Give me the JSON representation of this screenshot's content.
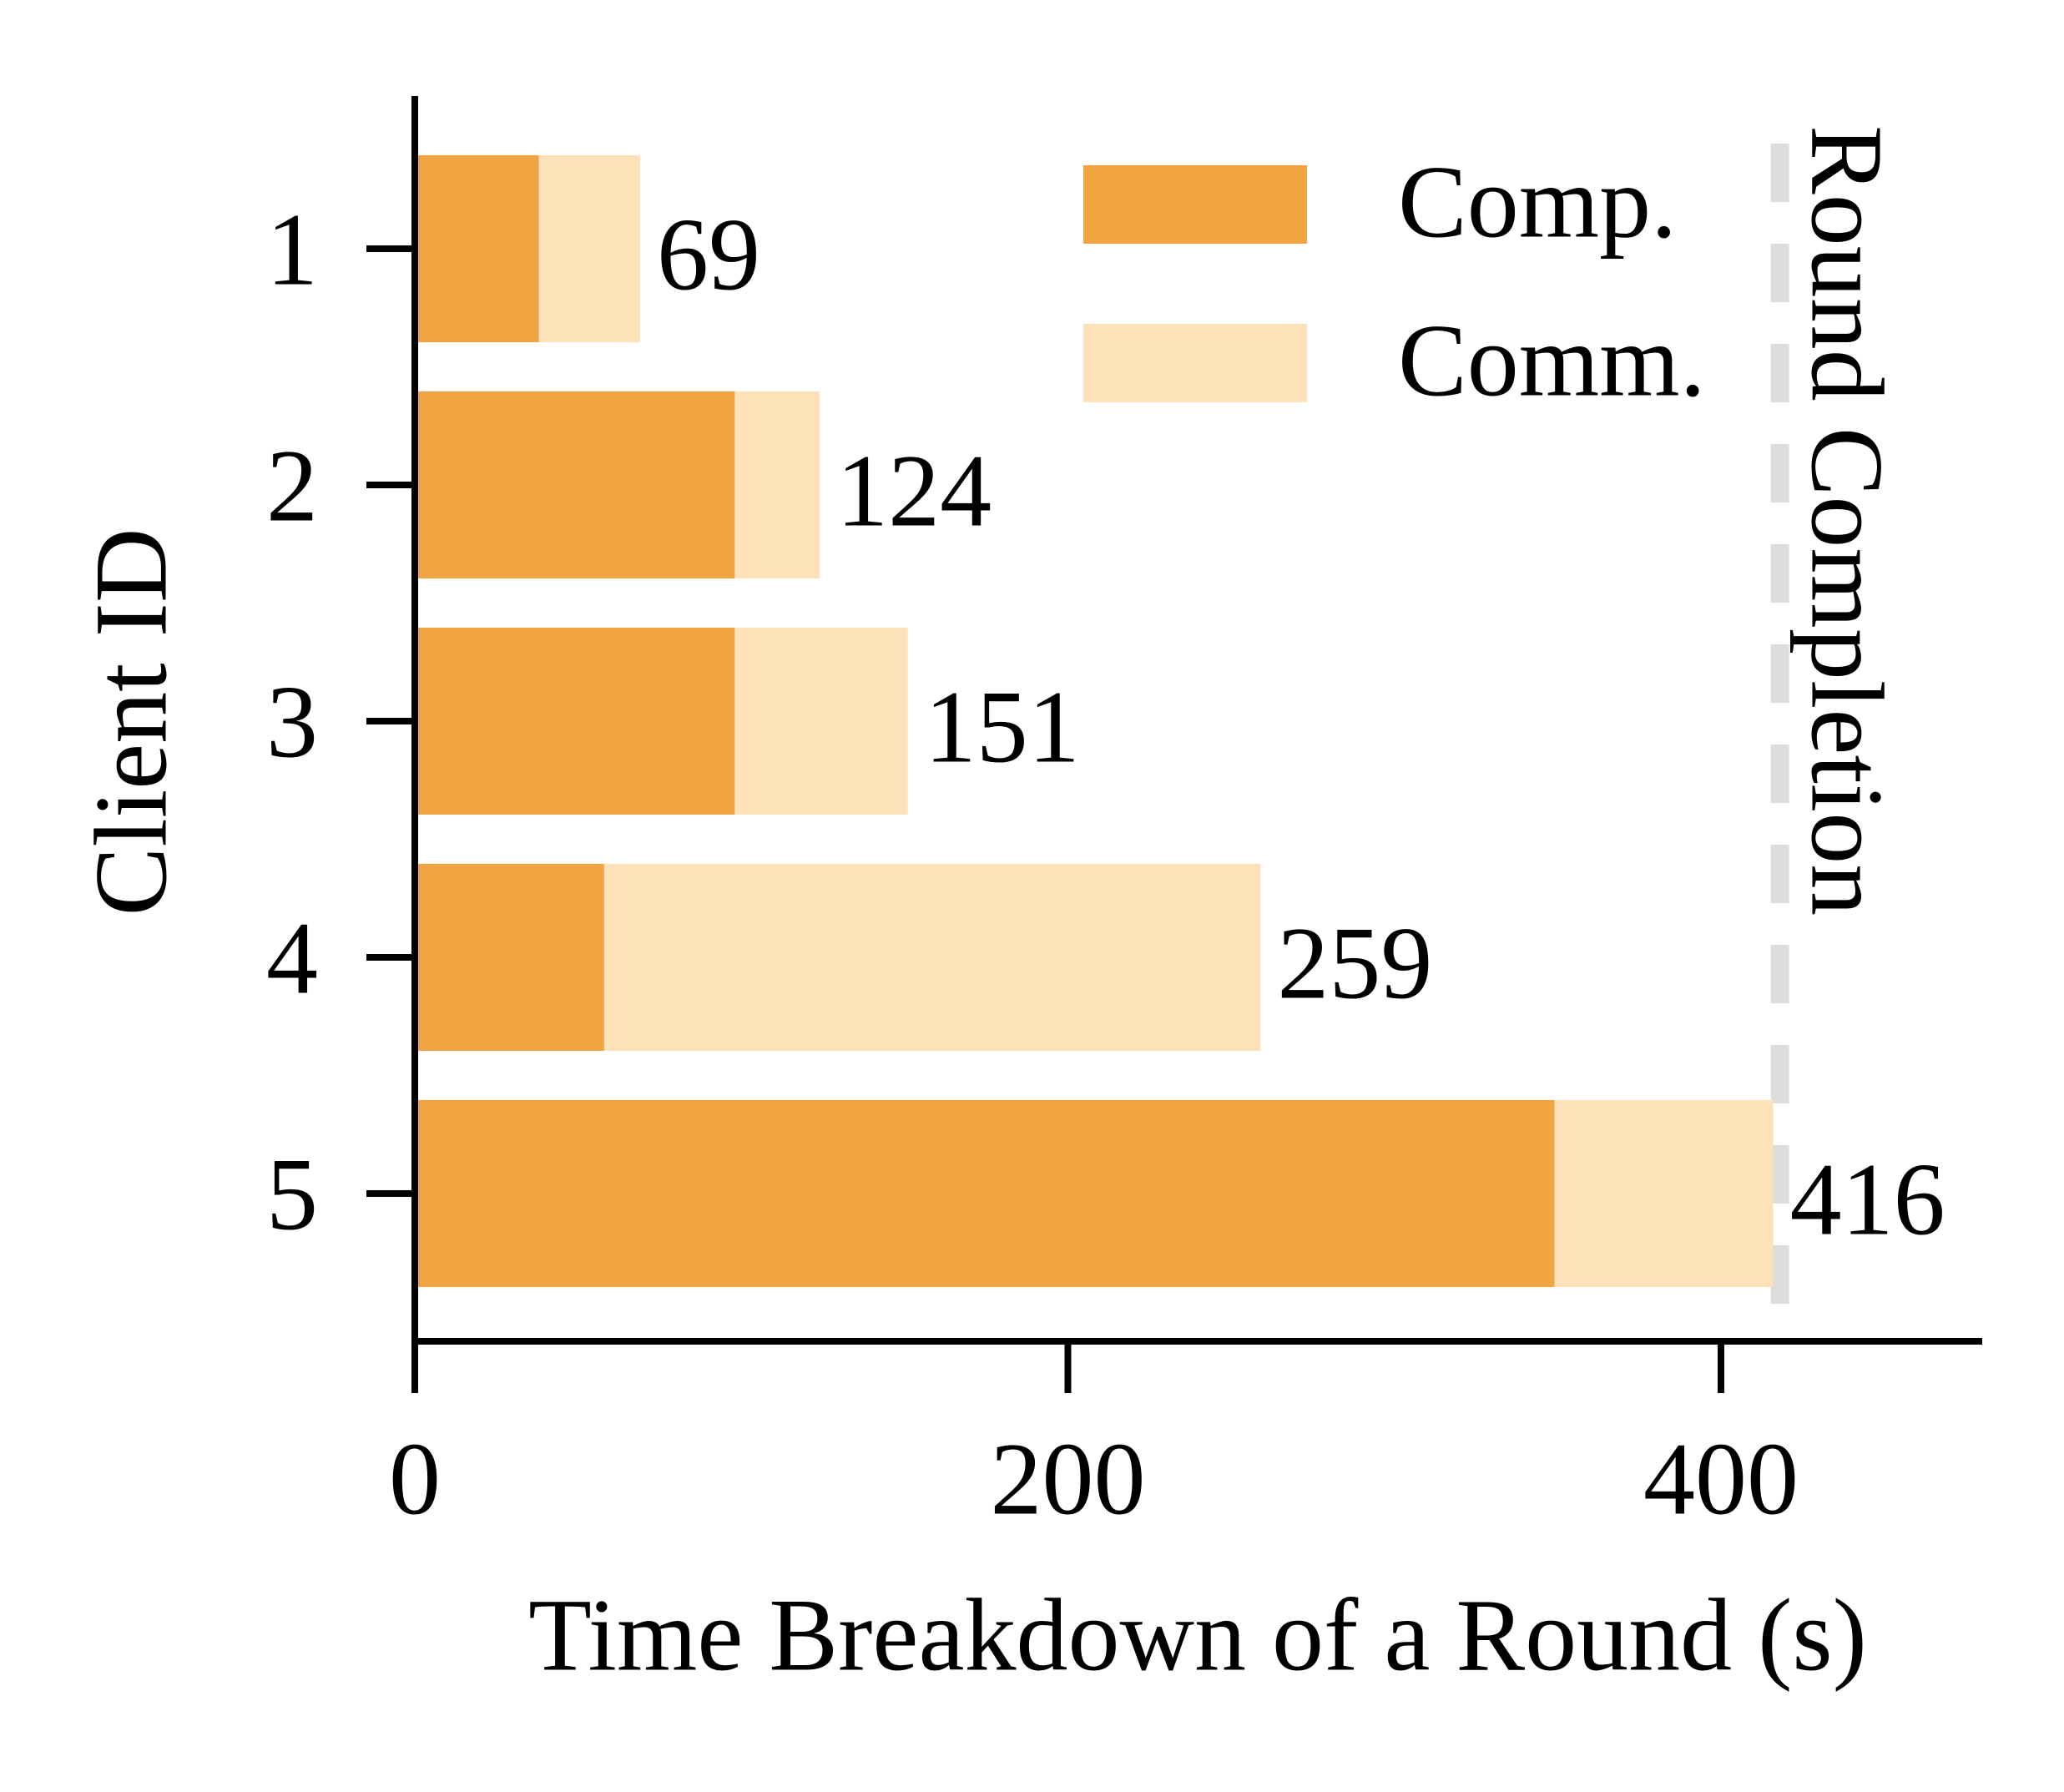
{
  "chart_data": {
    "type": "bar",
    "orientation": "horizontal",
    "stacked": true,
    "categories": [
      "1",
      "2",
      "3",
      "4",
      "5"
    ],
    "series": [
      {
        "name": "Comp.",
        "values": [
          38,
          98,
          98,
          58,
          349
        ],
        "color": "#F0A542"
      },
      {
        "name": "Comm.",
        "values": [
          31,
          26,
          53,
          201,
          67
        ],
        "color": "#FDE1B8"
      }
    ],
    "totals": [
      "69",
      "124",
      "151",
      "259",
      "416"
    ],
    "xlabel": "Time Breakdown of a Round (s)",
    "ylabel": "Client ID",
    "xlim": [
      0,
      480
    ],
    "xticks": [
      "0",
      "200",
      "400"
    ],
    "xtick_values": [
      0,
      200,
      400
    ],
    "grid": false,
    "legend_position": "top-right",
    "reference_line": {
      "value": 416,
      "label": "Round Completion",
      "style": "dashed",
      "color": "#DDDDDD"
    }
  }
}
